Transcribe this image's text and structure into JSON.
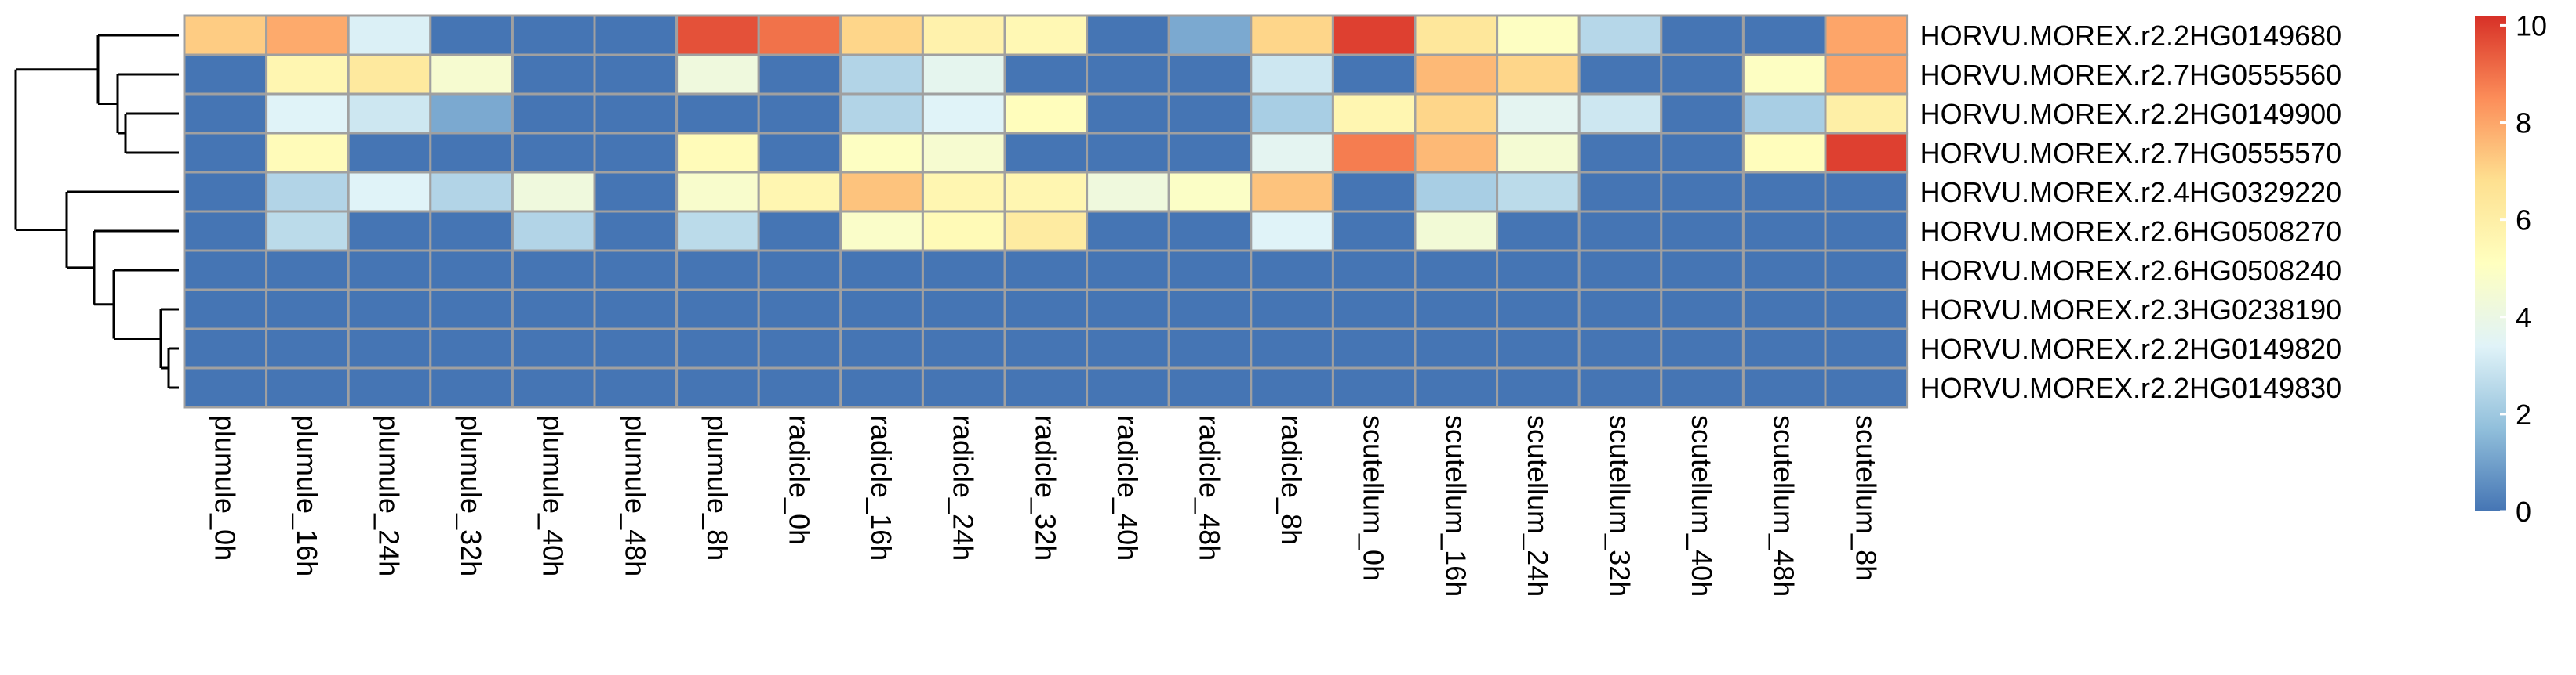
{
  "chart_data": {
    "type": "heatmap",
    "title": "",
    "rows": [
      "HORVU.MOREX.r2.2HG0149680",
      "HORVU.MOREX.r2.7HG0555560",
      "HORVU.MOREX.r2.2HG0149900",
      "HORVU.MOREX.r2.7HG0555570",
      "HORVU.MOREX.r2.4HG0329220",
      "HORVU.MOREX.r2.6HG0508270",
      "HORVU.MOREX.r2.6HG0508240",
      "HORVU.MOREX.r2.3HG0238190",
      "HORVU.MOREX.r2.2HG0149820",
      "HORVU.MOREX.r2.2HG0149830"
    ],
    "columns": [
      "plumule_0h",
      "plumule_16h",
      "plumule_24h",
      "plumule_32h",
      "plumule_40h",
      "plumule_48h",
      "plumule_8h",
      "radicle_0h",
      "radicle_16h",
      "radicle_24h",
      "radicle_32h",
      "radicle_40h",
      "radicle_48h",
      "radicle_8h",
      "scutellum_0h",
      "scutellum_16h",
      "scutellum_24h",
      "scutellum_32h",
      "scutellum_40h",
      "scutellum_48h",
      "scutellum_8h"
    ],
    "values": [
      [
        7.2,
        7.9,
        3.3,
        0,
        0,
        0,
        9.6,
        9.0,
        7.0,
        5.8,
        5.5,
        0,
        1.2,
        7.0,
        9.9,
        6.4,
        5.0,
        2.5,
        0,
        0,
        8.0
      ],
      [
        0,
        5.6,
        6.3,
        4.6,
        0,
        0,
        4.2,
        0,
        2.4,
        3.7,
        0,
        0,
        0,
        3.0,
        0,
        7.6,
        7.0,
        0,
        0,
        5.0,
        8.0
      ],
      [
        0,
        3.4,
        3.0,
        1.2,
        0,
        0,
        0,
        0,
        2.4,
        3.4,
        5.2,
        0,
        0,
        2.2,
        5.6,
        7.0,
        3.6,
        3.0,
        0,
        2.2,
        6.0
      ],
      [
        0,
        5.3,
        0,
        0,
        0,
        0,
        5.3,
        0,
        5.0,
        4.6,
        0,
        0,
        0,
        3.6,
        8.8,
        7.6,
        4.5,
        0,
        0,
        5.2,
        9.9
      ],
      [
        0,
        2.4,
        3.4,
        2.4,
        4.2,
        0,
        4.7,
        5.6,
        7.4,
        5.6,
        5.6,
        4.2,
        4.9,
        7.4,
        0,
        2.2,
        2.6,
        0,
        0,
        0,
        0
      ],
      [
        0,
        2.6,
        0,
        0,
        2.4,
        0,
        2.6,
        0,
        4.8,
        5.4,
        6.2,
        0,
        0,
        3.4,
        0,
        4.4,
        0,
        0,
        0,
        0,
        0
      ],
      [
        0,
        0,
        0,
        0,
        0,
        0,
        0,
        0,
        0,
        0,
        0,
        0,
        0,
        0,
        0,
        0,
        0,
        0,
        0,
        0,
        0
      ],
      [
        0,
        0,
        0,
        0,
        0,
        0,
        0,
        0,
        0,
        0,
        0,
        0,
        0,
        0,
        0,
        0,
        0,
        0,
        0,
        0,
        0
      ],
      [
        0,
        0,
        0,
        0,
        0,
        0,
        0,
        0,
        0,
        0,
        0,
        0,
        0,
        0,
        0,
        0,
        0,
        0,
        0,
        0,
        0
      ],
      [
        0,
        0,
        0,
        0,
        0,
        0,
        0,
        0,
        0,
        0,
        0,
        0,
        0,
        0,
        0,
        0,
        0,
        0,
        0,
        0,
        0
      ]
    ],
    "color_scale": {
      "min": 0,
      "max": 10.2,
      "stops": [
        "#4575B4",
        "#91BFDB",
        "#E0F3F8",
        "#FFFFBF",
        "#FEE090",
        "#FC8D59",
        "#D73027"
      ],
      "ticks": [
        0,
        2,
        4,
        6,
        8,
        10
      ]
    },
    "cell_border_color": "#A0A0A0",
    "row_dendrogram": true,
    "legend_position": "right"
  }
}
